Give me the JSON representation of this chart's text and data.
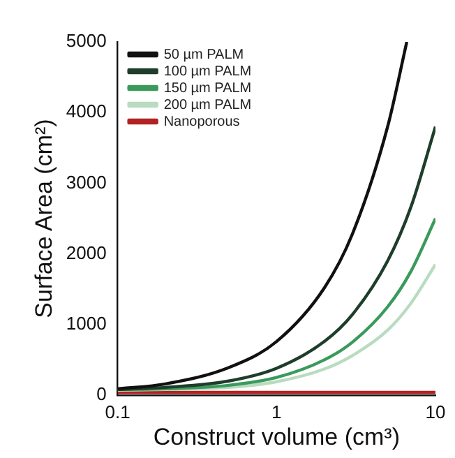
{
  "chart_data": {
    "type": "line",
    "xlabel": "Construct volume (cm³)",
    "ylabel": "Surface Area (cm²)",
    "log": "x",
    "xlim": [
      0.1,
      10
    ],
    "xticks": [
      0.1,
      1,
      10
    ],
    "ylim": [
      0,
      5000
    ],
    "yticks": [
      0,
      1000,
      2000,
      3000,
      4000,
      5000
    ],
    "grid": false,
    "legend": "top left",
    "marker": "none",
    "line_style": "solid",
    "series": [
      {
        "name": "50 µm PALM",
        "color": "#111111",
        "x": [
          0.1,
          0.2,
          0.5,
          1,
          2,
          3,
          5,
          6.6
        ],
        "values": [
          90,
          160,
          390,
          760,
          1520,
          2280,
          3800,
          5000
        ]
      },
      {
        "name": "100 µm PALM",
        "color": "#1e3d2a",
        "x": [
          0.1,
          0.2,
          0.5,
          1,
          2,
          3,
          5,
          7,
          10
        ],
        "values": [
          80,
          110,
          200,
          380,
          760,
          1140,
          1900,
          2660,
          3800
        ]
      },
      {
        "name": "150 µm PALM",
        "color": "#3a9a5c",
        "x": [
          0.1,
          0.2,
          0.5,
          1,
          2,
          3,
          5,
          7,
          10
        ],
        "values": [
          80,
          90,
          140,
          250,
          500,
          750,
          1250,
          1750,
          2500
        ]
      },
      {
        "name": "200 µm PALM",
        "color": "#b9dcc0",
        "x": [
          0.1,
          0.2,
          0.5,
          1,
          2,
          3,
          5,
          7,
          10
        ],
        "values": [
          70,
          80,
          110,
          190,
          370,
          560,
          920,
          1300,
          1850
        ]
      },
      {
        "name": "Nanoporous",
        "color": "#b22222",
        "x": [
          0.1,
          1,
          10
        ],
        "values": [
          40,
          40,
          40
        ]
      }
    ]
  }
}
